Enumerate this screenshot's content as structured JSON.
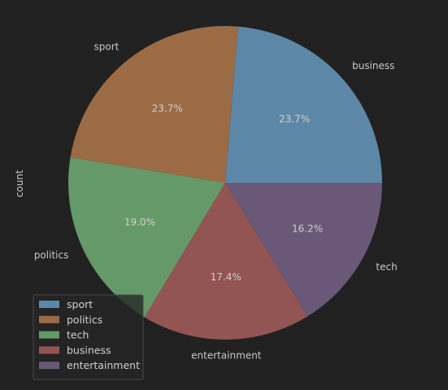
{
  "chart_data": {
    "type": "pie",
    "ylabel": "count",
    "slices": [
      {
        "category": "business",
        "legend": "sport",
        "percent": 23.7,
        "pct_label": "23.7%",
        "color": "#5d87a6"
      },
      {
        "category": "sport",
        "legend": "politics",
        "percent": 23.7,
        "pct_label": "23.7%",
        "color": "#9b6b45"
      },
      {
        "category": "politics",
        "legend": "tech",
        "percent": 19.0,
        "pct_label": "19.0%",
        "color": "#66996a"
      },
      {
        "category": "entertainment",
        "legend": "business",
        "percent": 17.4,
        "pct_label": "17.4%",
        "color": "#925553"
      },
      {
        "category": "tech",
        "legend": "entertainment",
        "percent": 16.2,
        "pct_label": "16.2%",
        "color": "#6a5878"
      }
    ],
    "legend": {
      "placement": "lower-left",
      "entries": [
        "sport",
        "politics",
        "tech",
        "business",
        "entertainment"
      ]
    },
    "start_angle_deg": 0,
    "direction": "counterclockwise"
  },
  "colors": {
    "background": "#212121",
    "text": "#c8c8c8",
    "legend_bg": "#262626",
    "legend_border": "#4a4a4a"
  }
}
